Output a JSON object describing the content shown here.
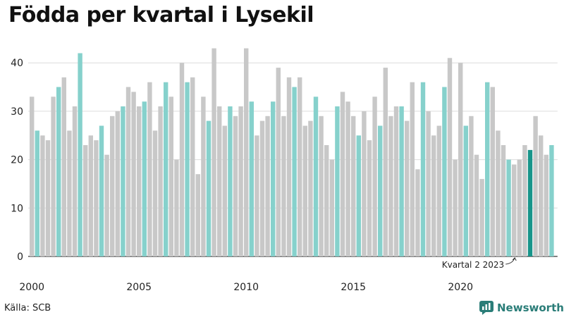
{
  "title": "Födda per kvartal i Lysekil",
  "source": "Källa: SCB",
  "brand": "Newsworthy",
  "colors": {
    "q1": "#c8c8c8",
    "q2": "#86d1cc",
    "q3": "#c8c8c8",
    "q4": "#c8c8c8",
    "highlight": "#17958a",
    "brand": "#2a7d78"
  },
  "chart_data": {
    "type": "bar",
    "title": "Födda per kvartal i Lysekil",
    "xlabel": "",
    "ylabel": "",
    "ylim": [
      0,
      45
    ],
    "yticks": [
      0,
      10,
      20,
      30,
      40
    ],
    "xtick_labels": [
      "2000",
      "2005",
      "2010",
      "2015",
      "2020"
    ],
    "start_year": 2000,
    "highlight_quarter": "2023 Q2",
    "annotation": "Kvartal 2 2023",
    "grid": true,
    "values": [
      33,
      26,
      25,
      24,
      33,
      35,
      37,
      26,
      31,
      42,
      23,
      25,
      24,
      27,
      21,
      29,
      30,
      31,
      35,
      34,
      31,
      32,
      36,
      26,
      31,
      36,
      33,
      20,
      40,
      36,
      37,
      17,
      33,
      28,
      43,
      31,
      27,
      31,
      29,
      31,
      43,
      32,
      25,
      28,
      29,
      32,
      39,
      29,
      37,
      35,
      37,
      27,
      28,
      33,
      29,
      23,
      20,
      31,
      34,
      32,
      29,
      25,
      30,
      24,
      33,
      27,
      39,
      29,
      31,
      31,
      28,
      36,
      18,
      36,
      30,
      25,
      27,
      35,
      41,
      20,
      40,
      27,
      29,
      21,
      16,
      36,
      35,
      26,
      23,
      20,
      19,
      20,
      23,
      22,
      29,
      25,
      21,
      23
    ]
  }
}
